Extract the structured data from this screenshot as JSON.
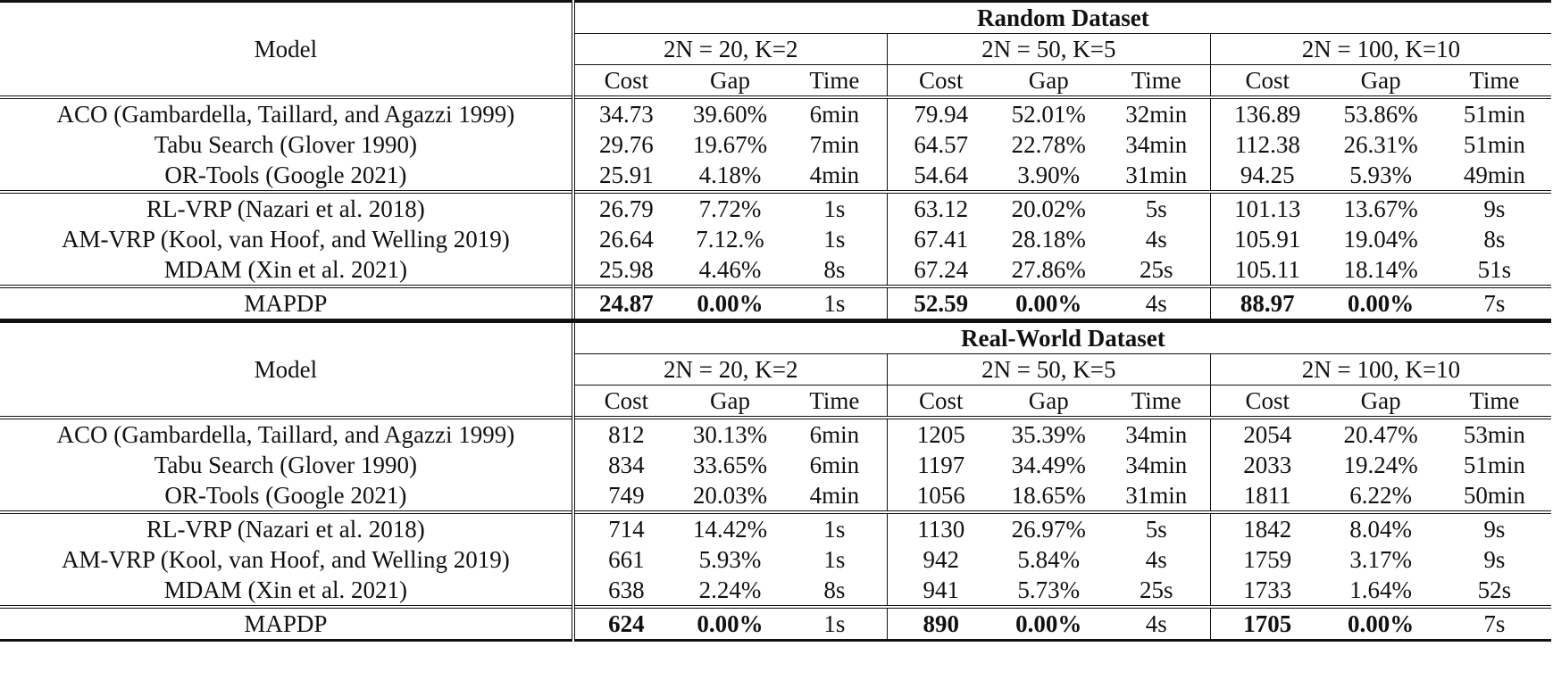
{
  "tables": [
    {
      "title": "Random Dataset",
      "model_header": "Model",
      "groups": [
        "2N = 20, K=2",
        "2N = 50, K=5",
        "2N = 100, K=10"
      ],
      "columns": [
        "Cost",
        "Gap",
        "Time"
      ],
      "row_groups": [
        [
          {
            "model": "ACO (Gambardella, Taillard, and Agazzi 1999)",
            "cells": [
              "34.73",
              "39.60%",
              "6min",
              "79.94",
              "52.01%",
              "32min",
              "136.89",
              "53.86%",
              "51min"
            ]
          },
          {
            "model": "Tabu Search (Glover 1990)",
            "cells": [
              "29.76",
              "19.67%",
              "7min",
              "64.57",
              "22.78%",
              "34min",
              "112.38",
              "26.31%",
              "51min"
            ]
          },
          {
            "model": "OR-Tools (Google 2021)",
            "cells": [
              "25.91",
              "4.18%",
              "4min",
              "54.64",
              "3.90%",
              "31min",
              "94.25",
              "5.93%",
              "49min"
            ]
          }
        ],
        [
          {
            "model": "RL-VRP (Nazari et al. 2018)",
            "cells": [
              "26.79",
              "7.72%",
              "1s",
              "63.12",
              "20.02%",
              "5s",
              "101.13",
              "13.67%",
              "9s"
            ]
          },
          {
            "model": "AM-VRP (Kool, van Hoof, and Welling 2019)",
            "cells": [
              "26.64",
              "7.12.%",
              "1s",
              "67.41",
              "28.18%",
              "4s",
              "105.91",
              "19.04%",
              "8s"
            ]
          },
          {
            "model": "MDAM (Xin et al. 2021)",
            "cells": [
              "25.98",
              "4.46%",
              "8s",
              "67.24",
              "27.86%",
              "25s",
              "105.11",
              "18.14%",
              "51s"
            ]
          }
        ],
        [
          {
            "model": "MAPDP",
            "cells": [
              "24.87",
              "0.00%",
              "1s",
              "52.59",
              "0.00%",
              "4s",
              "88.97",
              "0.00%",
              "7s"
            ]
          }
        ]
      ]
    },
    {
      "title": "Real-World Dataset",
      "model_header": "Model",
      "groups": [
        "2N = 20, K=2",
        "2N = 50, K=5",
        "2N = 100, K=10"
      ],
      "columns": [
        "Cost",
        "Gap",
        "Time"
      ],
      "row_groups": [
        [
          {
            "model": "ACO (Gambardella, Taillard, and Agazzi 1999)",
            "cells": [
              "812",
              "30.13%",
              "6min",
              "1205",
              "35.39%",
              "34min",
              "2054",
              "20.47%",
              "53min"
            ]
          },
          {
            "model": "Tabu Search (Glover 1990)",
            "cells": [
              "834",
              "33.65%",
              "6min",
              "1197",
              "34.49%",
              "34min",
              "2033",
              "19.24%",
              "51min"
            ]
          },
          {
            "model": "OR-Tools (Google 2021)",
            "cells": [
              "749",
              "20.03%",
              "4min",
              "1056",
              "18.65%",
              "31min",
              "1811",
              "6.22%",
              "50min"
            ]
          }
        ],
        [
          {
            "model": "RL-VRP (Nazari et al. 2018)",
            "cells": [
              "714",
              "14.42%",
              "1s",
              "1130",
              "26.97%",
              "5s",
              "1842",
              "8.04%",
              "9s"
            ]
          },
          {
            "model": "AM-VRP (Kool, van Hoof, and Welling 2019)",
            "cells": [
              "661",
              "5.93%",
              "1s",
              "942",
              "5.84%",
              "4s",
              "1759",
              "3.17%",
              "9s"
            ]
          },
          {
            "model": "MDAM (Xin et al. 2021)",
            "cells": [
              "638",
              "2.24%",
              "8s",
              "941",
              "5.73%",
              "25s",
              "1733",
              "1.64%",
              "52s"
            ]
          }
        ],
        [
          {
            "model": "MAPDP",
            "cells": [
              "624",
              "0.00%",
              "1s",
              "890",
              "0.00%",
              "4s",
              "1705",
              "0.00%",
              "7s"
            ]
          }
        ]
      ]
    }
  ]
}
